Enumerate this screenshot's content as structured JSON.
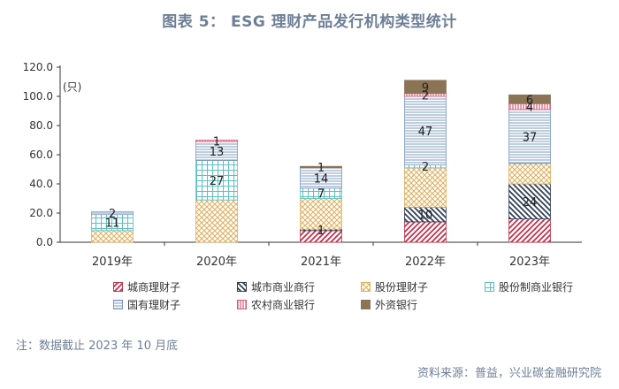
{
  "title": "图表 5：  ESG 理财产品发行机构类型统计",
  "note": "注：数据截止 2023 年 10 月底",
  "source": "资料来源：普益，兴业碳金融研究院",
  "chart_data": {
    "type": "bar",
    "stacked": true,
    "categories": [
      "2019年",
      "2020年",
      "2021年",
      "2022年",
      "2023年"
    ],
    "ylabel": "(只)",
    "ylim": [
      0,
      120
    ],
    "yticks": [
      "0.0",
      "20.0",
      "40.0",
      "60.0",
      "80.0",
      "100.0",
      "120.0"
    ],
    "grid": false,
    "legend_position": "bottom",
    "series": [
      {
        "name": "城商理财子",
        "values": [
          0,
          0,
          8,
          14,
          16
        ],
        "labels": [
          "",
          "",
          "",
          "",
          ""
        ],
        "color": "#c0304a",
        "pattern": "diag-right"
      },
      {
        "name": "城市商业商行",
        "values": [
          0,
          0,
          1,
          10,
          24
        ],
        "labels": [
          "",
          "",
          "1",
          "10",
          "24"
        ],
        "color": "#2f3e55",
        "pattern": "diag-left"
      },
      {
        "name": "股份理财子",
        "values": [
          8,
          29,
          21,
          27,
          14
        ],
        "labels": [
          "",
          "",
          "",
          "",
          ""
        ],
        "color": "#e0b060",
        "pattern": "cross"
      },
      {
        "name": "股份制商业银行",
        "values": [
          11,
          27,
          7,
          2,
          0
        ],
        "labels": [
          "11",
          "27",
          "7",
          "2",
          ""
        ],
        "color": "#5cc0c4",
        "pattern": "grid"
      },
      {
        "name": "国有理财子",
        "values": [
          2,
          13,
          14,
          47,
          37
        ],
        "labels": [
          "2",
          "13",
          "14",
          "47",
          "37"
        ],
        "color": "#7d9bc0",
        "pattern": "horiz"
      },
      {
        "name": "农村商业银行",
        "values": [
          0,
          1,
          0,
          2,
          4
        ],
        "labels": [
          "",
          "1",
          "",
          "2",
          "4"
        ],
        "color": "#d65a78",
        "pattern": "vert"
      },
      {
        "name": "外资银行",
        "values": [
          0,
          0,
          1,
          9,
          6
        ],
        "labels": [
          "",
          "",
          "1",
          "9",
          "6"
        ],
        "color": "#8b7355",
        "pattern": "solid"
      }
    ]
  }
}
